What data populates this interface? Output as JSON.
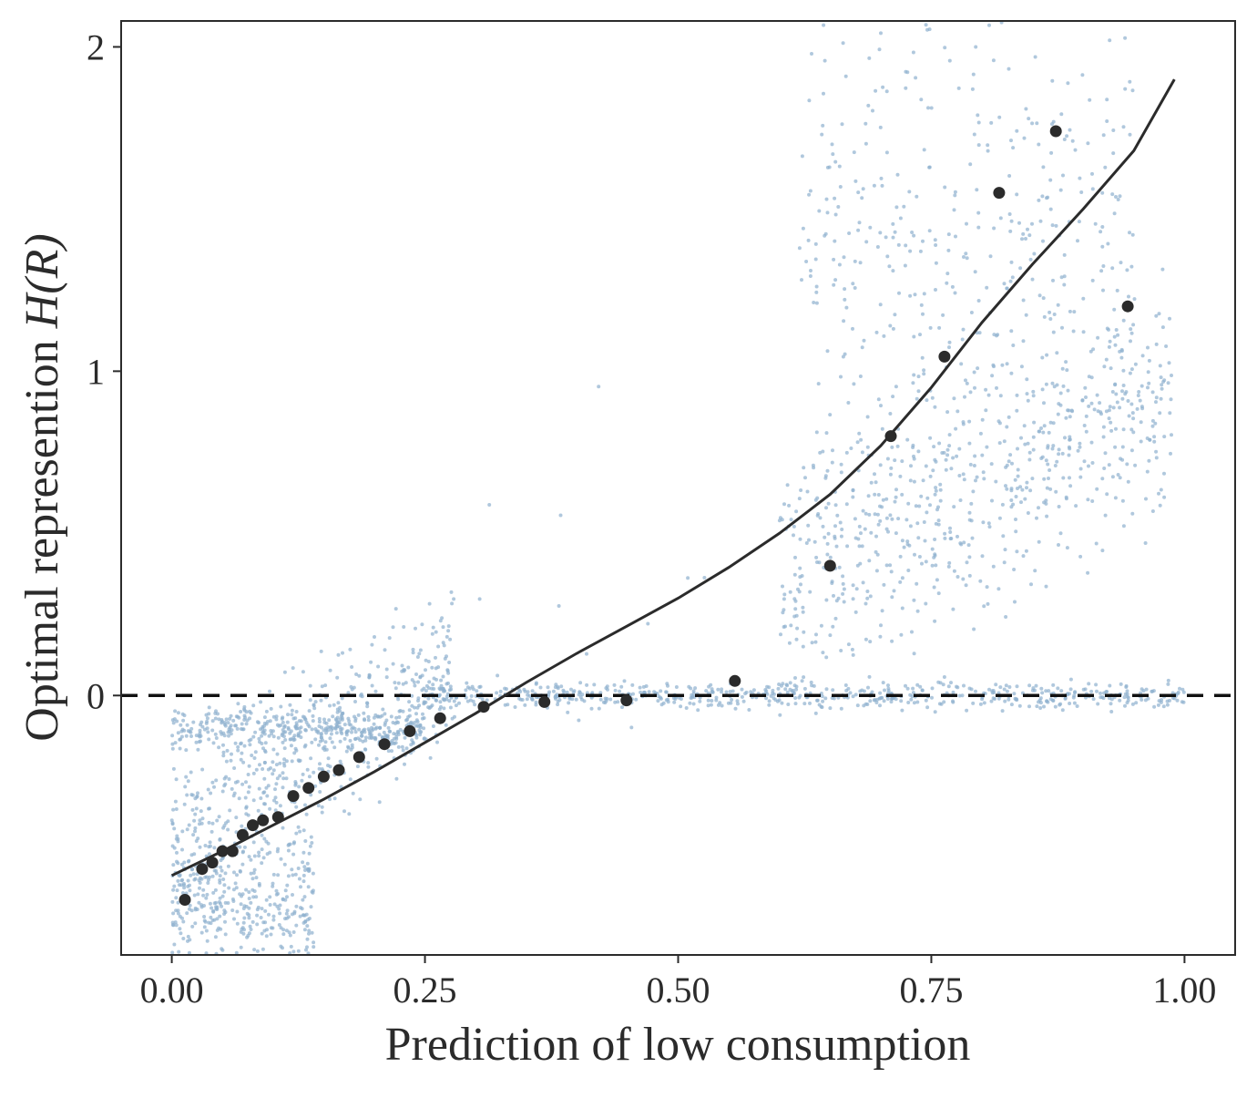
{
  "chart_data": {
    "type": "scatter",
    "title": "",
    "xlabel": "Prediction of low consumption",
    "ylabel_prefix": "Optimal represention ",
    "ylabel_math": "H(R)",
    "xlim": [
      -0.05,
      1.05
    ],
    "ylim": [
      -0.8,
      2.08
    ],
    "x_ticks": [
      {
        "value": 0.0,
        "label": "0.00"
      },
      {
        "value": 0.25,
        "label": "0.25"
      },
      {
        "value": 0.5,
        "label": "0.50"
      },
      {
        "value": 0.75,
        "label": "0.75"
      },
      {
        "value": 1.0,
        "label": "1.00"
      }
    ],
    "y_ticks": [
      {
        "value": 0,
        "label": "0"
      },
      {
        "value": 1,
        "label": "1"
      },
      {
        "value": 2,
        "label": "2"
      }
    ],
    "reference_line": {
      "y": 0,
      "style": "dashed",
      "color": "#111111"
    },
    "grid": false,
    "legend": "none",
    "colors": {
      "raw_points": "#8fb0cf",
      "binned_points": "#2b2b2b",
      "fit_line": "#2b2b2b",
      "axes": "#2b2b2b"
    },
    "series": [
      {
        "kind": "binned_means",
        "x": [
          0.013,
          0.03,
          0.04,
          0.05,
          0.06,
          0.07,
          0.08,
          0.09,
          0.105,
          0.12,
          0.135,
          0.15,
          0.165,
          0.185,
          0.21,
          0.235,
          0.265,
          0.308,
          0.368,
          0.449,
          0.556,
          0.65,
          0.71,
          0.763,
          0.817,
          0.873,
          0.944
        ],
        "y": [
          -0.63,
          -0.535,
          -0.515,
          -0.48,
          -0.48,
          -0.43,
          -0.4,
          -0.385,
          -0.375,
          -0.31,
          -0.285,
          -0.25,
          -0.23,
          -0.19,
          -0.15,
          -0.11,
          -0.07,
          -0.035,
          -0.02,
          -0.015,
          0.045,
          0.4,
          0.8,
          1.045,
          1.55,
          1.74,
          1.2
        ]
      },
      {
        "kind": "fit_curve",
        "x": [
          0.0,
          0.05,
          0.1,
          0.15,
          0.2,
          0.25,
          0.3,
          0.35,
          0.4,
          0.45,
          0.5,
          0.55,
          0.6,
          0.65,
          0.7,
          0.75,
          0.8,
          0.85,
          0.9,
          0.95,
          0.99
        ],
        "y": [
          -0.555,
          -0.48,
          -0.4,
          -0.32,
          -0.235,
          -0.145,
          -0.055,
          0.04,
          0.13,
          0.215,
          0.3,
          0.395,
          0.5,
          0.62,
          0.77,
          0.95,
          1.15,
          1.33,
          1.5,
          1.68,
          1.9
        ]
      },
      {
        "kind": "raw_observations",
        "clusters": [
          {
            "x_range": [
              0.0,
              0.25
            ],
            "y_center": -0.1,
            "y_spread": 0.03,
            "count": 360
          },
          {
            "x_range": [
              0.0,
              0.28
            ],
            "y_center": -0.4,
            "y_spread": 0.12,
            "count": 550
          },
          {
            "x_range": [
              0.0,
              0.14
            ],
            "y_center": -0.65,
            "y_spread": 0.13,
            "count": 420
          },
          {
            "x_range": [
              0.25,
              1.0
            ],
            "y_center": 0.0,
            "y_spread": 0.02,
            "count": 620
          },
          {
            "x_range": [
              0.6,
              0.99
            ],
            "y_center": 0.55,
            "y_spread": 0.2,
            "count": 650
          },
          {
            "x_range": [
              0.62,
              0.95
            ],
            "y_center": 1.4,
            "y_spread": 0.4,
            "count": 420
          },
          {
            "x_range": [
              0.3,
              0.6
            ],
            "y_center": 0.35,
            "y_spread": 0.25,
            "count": 14
          }
        ]
      }
    ]
  }
}
